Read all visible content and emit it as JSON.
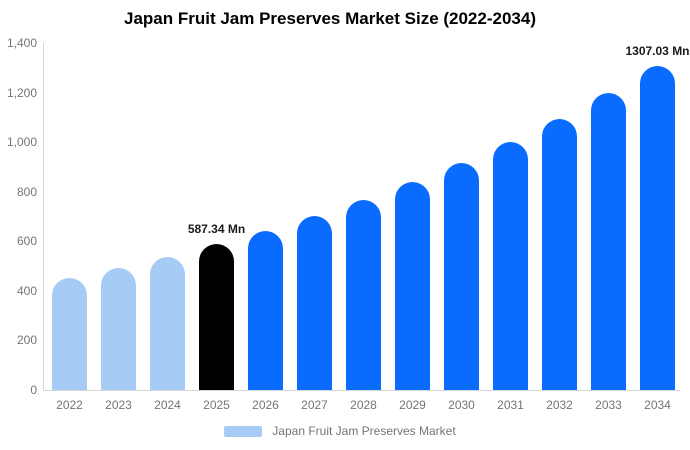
{
  "chart_data": {
    "type": "bar",
    "title": "Japan Fruit Jam Preserves Market Size (2022-2034)",
    "unit": "Mn",
    "categories": [
      "2022",
      "2023",
      "2024",
      "2025",
      "2026",
      "2027",
      "2028",
      "2029",
      "2030",
      "2031",
      "2032",
      "2033",
      "2034"
    ],
    "values": [
      450,
      492,
      537,
      587.34,
      642,
      702,
      767,
      838,
      916,
      1002,
      1095,
      1197,
      1307.03
    ],
    "bar_styles": [
      "historical",
      "historical",
      "historical",
      "base_year",
      "forecast",
      "forecast",
      "forecast",
      "forecast",
      "forecast",
      "forecast",
      "forecast",
      "forecast",
      "forecast"
    ],
    "annotations": [
      {
        "category": "2025",
        "label": "587.34 Mn"
      },
      {
        "category": "2034",
        "label": "1307.03 Mn"
      }
    ],
    "ylim": [
      0,
      1400
    ],
    "ytick_values": [
      1400,
      1200,
      1000,
      800,
      600,
      400,
      200,
      0
    ],
    "ytick_labels": [
      "1,400",
      "1,200",
      "1,000",
      "800",
      "600",
      "400",
      "200",
      "0"
    ],
    "grid": false,
    "legend": {
      "position": "bottom",
      "label": "Japan Fruit Jam Preserves Market",
      "swatch_color": "#a6ccf5"
    },
    "colors": {
      "historical": "#a6ccf5",
      "base_year": "#000000",
      "forecast": "#0a6cff",
      "axis_text": "#757575",
      "axis_line": "#d6d6d6",
      "annotation_text": "#1a1a1a",
      "title_text": "#000000"
    }
  }
}
